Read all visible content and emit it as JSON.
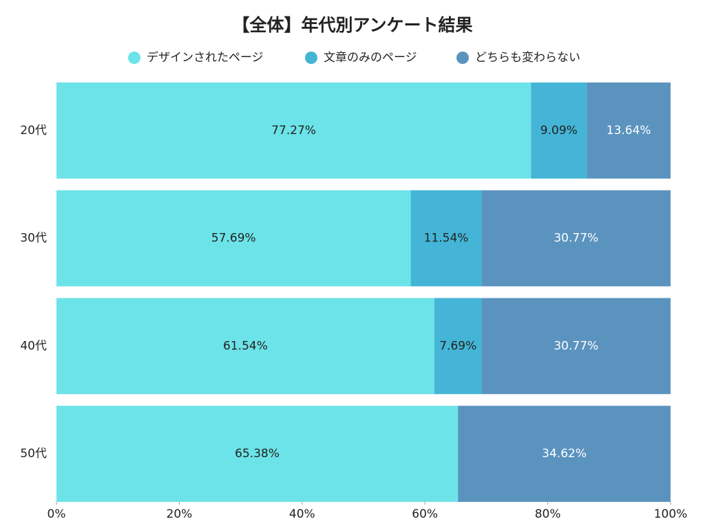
{
  "chart_data": {
    "type": "bar",
    "orientation": "horizontal",
    "stacked": true,
    "title": "【全体】年代別アンケート結果",
    "categories": [
      "20代",
      "30代",
      "40代",
      "50代"
    ],
    "series": [
      {
        "name": "デザインされたページ",
        "color": "#6ce3e8",
        "values": [
          77.27,
          57.69,
          61.54,
          65.38
        ],
        "value_labels": [
          "77.27%",
          "57.69%",
          "61.54%",
          "65.38%"
        ]
      },
      {
        "name": "文章のみのページ",
        "color": "#44b5d6",
        "values": [
          9.09,
          11.54,
          7.69,
          0
        ],
        "value_labels": [
          "9.09%",
          "11.54%",
          "7.69%",
          null
        ]
      },
      {
        "name": "どちらも変わらない",
        "color": "#5b93bf",
        "values": [
          13.64,
          30.77,
          30.77,
          34.62
        ],
        "value_labels": [
          "13.64%",
          "30.77%",
          "30.77%",
          "34.62%"
        ]
      }
    ],
    "xlim": [
      0,
      100
    ],
    "xticks": [
      {
        "value": 0,
        "label": "0%"
      },
      {
        "value": 20,
        "label": "20%"
      },
      {
        "value": 40,
        "label": "40%"
      },
      {
        "value": 60,
        "label": "60%"
      },
      {
        "value": 80,
        "label": "80%"
      },
      {
        "value": 100,
        "label": "100%"
      }
    ],
    "legend": "top"
  }
}
